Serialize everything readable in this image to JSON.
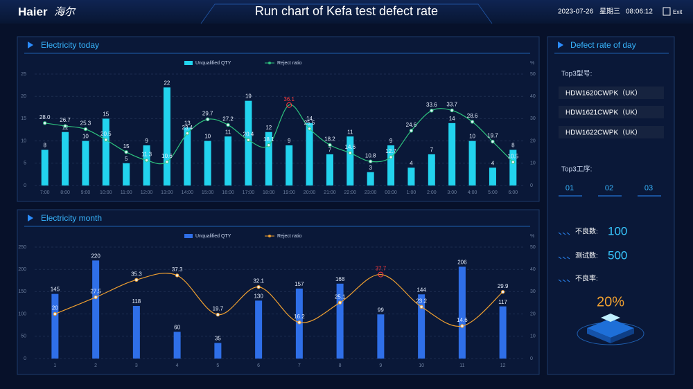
{
  "header": {
    "logo_en": "Haier",
    "logo_cn": "海尔",
    "title": "Run chart of Kefa test defect rate",
    "date": "2023-07-26",
    "weekday": "星期三",
    "time": "08:06:12",
    "exit": "Exit"
  },
  "chart_data": [
    {
      "type": "bar",
      "title": "Electricity today",
      "categories": [
        "7:00",
        "8:00",
        "9:00",
        "10:00",
        "11:00",
        "12:00",
        "13:00",
        "14:00",
        "15:00",
        "16:00",
        "17:00",
        "18:00",
        "19:00",
        "20:00",
        "21:00",
        "22:00",
        "23:00",
        "00:00",
        "1:00",
        "2:00",
        "3:00",
        "4:00",
        "5:00",
        "6:00"
      ],
      "series": [
        {
          "name": "Unqualified QTY",
          "type": "bar",
          "color": "#22d3ee",
          "values": [
            8,
            12,
            10,
            15,
            5,
            9,
            22,
            13,
            10,
            11,
            19,
            12,
            9,
            14,
            7,
            11,
            3,
            9,
            4,
            7,
            14,
            10,
            4,
            8
          ]
        },
        {
          "name": "Reject ratio",
          "type": "line",
          "axis": "y2",
          "color": "#2ec27e",
          "values": [
            28.0,
            26.7,
            25.3,
            20.5,
            15,
            11.3,
            10.6,
            23.4,
            29.7,
            27.2,
            20.4,
            18.1,
            36.1,
            25.5,
            18.2,
            14.6,
            10.8,
            12.7,
            24.6,
            33.6,
            33.7,
            28.6,
            19.7,
            10.5
          ],
          "value_labels": [
            "28.0",
            "26.7",
            "25.3",
            "20.5",
            "15",
            "11.3",
            "10.6",
            "23.4",
            "29.7",
            "27.2",
            "20.4",
            "18.1",
            "36.1",
            "25.5",
            "18.2",
            "14.6",
            "10.8",
            "12.7",
            "24.6",
            "33.6",
            "33.7",
            "28.6",
            "19.7",
            "10.5"
          ]
        }
      ],
      "ylim": [
        0,
        25
      ],
      "yticks": [
        0,
        5,
        10,
        15,
        20,
        25
      ],
      "y2lim": [
        0,
        50
      ],
      "y2ticks": [
        0,
        10,
        20,
        30,
        40,
        50
      ],
      "y2_label": "%",
      "grid": true,
      "highlight_color": "#ff3b3b"
    },
    {
      "type": "bar",
      "title": "Electricity month",
      "categories": [
        "1",
        "2",
        "3",
        "4",
        "5",
        "6",
        "7",
        "8",
        "9",
        "10",
        "11",
        "12"
      ],
      "series": [
        {
          "name": "Unqualified QTY",
          "type": "bar",
          "color": "#2f6fe8",
          "values": [
            145,
            220,
            118,
            60,
            35,
            130,
            157,
            168,
            99,
            144,
            206,
            117
          ]
        },
        {
          "name": "Reject ratio",
          "type": "line",
          "axis": "y2",
          "color": "#f0a030",
          "values": [
            20,
            27.5,
            35.3,
            37.3,
            19.7,
            32.1,
            16.2,
            25.1,
            37.7,
            23.2,
            14.6,
            29.9
          ],
          "value_labels": [
            "20",
            "27.5",
            "35.3",
            "37.3",
            "19.7",
            "32.1",
            "16.2",
            "25.1",
            "37.7",
            "23.2",
            "14.6",
            "29.9"
          ]
        }
      ],
      "ylim": [
        0,
        250
      ],
      "yticks": [
        0,
        50,
        100,
        150,
        200,
        250
      ],
      "y2lim": [
        0,
        50
      ],
      "y2ticks": [
        0,
        10,
        20,
        30,
        40,
        50
      ],
      "y2_label": "%",
      "grid": true,
      "highlight_color": "#ff3b3b"
    }
  ],
  "side": {
    "title": "Defect rate of day",
    "top3_models_label": "Top3型号:",
    "models": [
      "HDW1620CWPK（UK）",
      "HDW1621CWPK（UK）",
      "HDW1622CWPK（UK）"
    ],
    "top3_process_label": "Top3工序:",
    "processes": [
      "01",
      "02",
      "03"
    ],
    "defects_label": "不良数:",
    "defects": 100,
    "tested_label": "测试数:",
    "tested": 500,
    "rate_label": "不良率:",
    "rate": "20%"
  }
}
